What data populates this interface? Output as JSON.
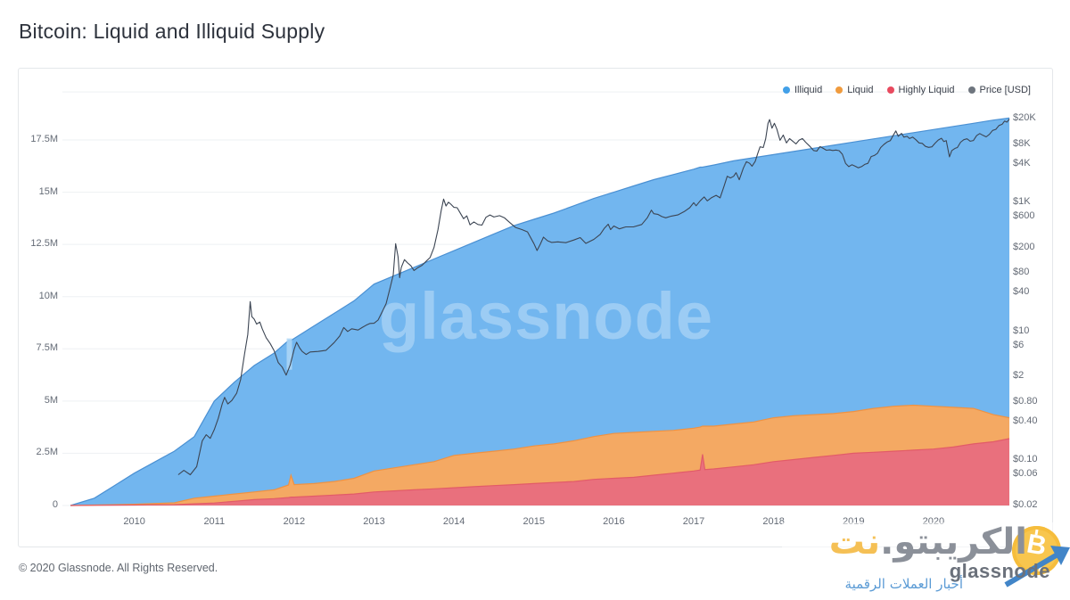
{
  "title": "Bitcoin: Liquid and Illiquid Supply",
  "watermark_text": "glassnode",
  "footer": {
    "copyright": "© 2020 Glassnode. All Rights Reserved."
  },
  "brand": {
    "name_main": "الكريبتو.",
    "name_accent": "نت",
    "coin_symbol": "B",
    "glassnode": "glassnode",
    "tagline": "أخبار العملات الرقمية",
    "accent_color": "#f5c055",
    "coin_color": "#f8c64e",
    "arrow_color": "#4285c8",
    "tagline_color": "#5b9bd5"
  },
  "chart_data": {
    "type": "stacked_area+line",
    "title": "Bitcoin: Liquid and Illiquid Supply",
    "legend_position": "top-right",
    "grid": "horizontal",
    "x_range": [
      2009.1,
      2020.95
    ],
    "left_axis": {
      "unit": "BTC supply (millions)",
      "lim": [
        0,
        19.8
      ],
      "labels": [
        "0",
        "2.5M",
        "5M",
        "7.5M",
        "10M",
        "12.5M",
        "15M",
        "17.5M"
      ],
      "values": [
        0,
        2.5,
        5,
        7.5,
        10,
        12.5,
        15,
        17.5
      ]
    },
    "right_axis": {
      "unit": "Price [USD]",
      "scale": "log",
      "lim": [
        0.02,
        20000
      ],
      "labels": [
        "$20K",
        "$8K",
        "$4K",
        "$1K",
        "$600",
        "$200",
        "$80",
        "$40",
        "$10",
        "$6",
        "$2",
        "$0.80",
        "$0.40",
        "$0.10",
        "$0.06",
        "$0.02"
      ],
      "values": [
        20000,
        8000,
        4000,
        1000,
        600,
        200,
        80,
        40,
        10,
        6,
        2,
        0.8,
        0.4,
        0.1,
        0.06,
        0.02
      ]
    },
    "x_axis": {
      "years": [
        2010,
        2011,
        2012,
        2013,
        2014,
        2015,
        2016,
        2017,
        2018,
        2019,
        2020
      ]
    },
    "series": [
      {
        "name": "Illiquid",
        "type": "area",
        "fill": "#72b6ef",
        "stroke": "#4a90d3",
        "dot": "#42a0e8"
      },
      {
        "name": "Liquid",
        "type": "area",
        "fill": "#f4a963",
        "stroke": "#ef9242",
        "dot": "#f09b3e"
      },
      {
        "name": "Highly Liquid",
        "type": "area",
        "fill": "#e9707d",
        "stroke": "#e25b68",
        "dot": "#e84a5f"
      },
      {
        "name": "Price [USD]",
        "type": "line",
        "stroke": "#3c4553",
        "dot": "#6e757e",
        "axis": "right"
      }
    ],
    "supply": {
      "unit": "M BTC",
      "x": [
        2009.2,
        2009.5,
        2010.0,
        2010.5,
        2010.75,
        2011.0,
        2011.25,
        2011.5,
        2011.75,
        2011.93,
        2011.96,
        2012.0,
        2012.25,
        2012.5,
        2012.75,
        2013.0,
        2013.25,
        2013.5,
        2013.75,
        2014.0,
        2014.25,
        2014.5,
        2014.75,
        2015.0,
        2015.25,
        2015.5,
        2015.75,
        2016.0,
        2016.25,
        2016.5,
        2016.75,
        2017.0,
        2017.08,
        2017.11,
        2017.14,
        2017.25,
        2017.5,
        2017.75,
        2018.0,
        2018.25,
        2018.5,
        2018.75,
        2019.0,
        2019.25,
        2019.5,
        2019.75,
        2020.0,
        2020.25,
        2020.5,
        2020.75,
        2020.95
      ],
      "highly_liquid": [
        0,
        0.01,
        0.02,
        0.04,
        0.08,
        0.12,
        0.2,
        0.28,
        0.33,
        0.38,
        0.4,
        0.4,
        0.45,
        0.5,
        0.55,
        0.65,
        0.7,
        0.75,
        0.8,
        0.85,
        0.9,
        0.95,
        1.0,
        1.05,
        1.1,
        1.15,
        1.25,
        1.3,
        1.35,
        1.45,
        1.55,
        1.65,
        1.7,
        2.45,
        1.72,
        1.75,
        1.85,
        1.95,
        2.1,
        2.2,
        2.3,
        2.4,
        2.5,
        2.55,
        2.6,
        2.65,
        2.7,
        2.8,
        2.95,
        3.05,
        3.2
      ],
      "liquid": [
        0,
        0.01,
        0.04,
        0.09,
        0.27,
        0.33,
        0.35,
        0.37,
        0.42,
        0.6,
        1.05,
        0.6,
        0.6,
        0.65,
        0.75,
        1.0,
        1.1,
        1.2,
        1.3,
        1.55,
        1.6,
        1.65,
        1.7,
        1.8,
        1.85,
        1.95,
        2.05,
        2.15,
        2.15,
        2.1,
        2.05,
        2.05,
        2.05,
        1.35,
        2.08,
        2.05,
        2.05,
        2.05,
        2.1,
        2.1,
        2.05,
        2.0,
        2.0,
        2.1,
        2.15,
        2.15,
        2.05,
        1.9,
        1.7,
        1.3,
        1.0
      ],
      "illiquid": [
        0,
        0.33,
        1.49,
        2.47,
        2.95,
        4.55,
        5.35,
        6.05,
        6.55,
        6.92,
        6.45,
        7.0,
        7.55,
        8.05,
        8.5,
        8.95,
        9.2,
        9.45,
        9.7,
        9.8,
        10.1,
        10.4,
        10.7,
        10.85,
        11.05,
        11.25,
        11.4,
        11.55,
        11.8,
        12.05,
        12.25,
        12.4,
        12.45,
        12.4,
        12.42,
        12.5,
        12.6,
        12.65,
        12.6,
        12.65,
        12.75,
        12.85,
        12.9,
        12.9,
        12.95,
        13.05,
        13.25,
        13.45,
        13.65,
        14.1,
        14.35
      ]
    },
    "price_usd": [
      [
        2010.55,
        0.06
      ],
      [
        2010.62,
        0.07
      ],
      [
        2010.7,
        0.06
      ],
      [
        2010.78,
        0.08
      ],
      [
        2010.85,
        0.2
      ],
      [
        2010.9,
        0.25
      ],
      [
        2010.95,
        0.22
      ],
      [
        2011.0,
        0.3
      ],
      [
        2011.05,
        0.45
      ],
      [
        2011.1,
        0.75
      ],
      [
        2011.13,
        0.95
      ],
      [
        2011.17,
        0.75
      ],
      [
        2011.22,
        0.85
      ],
      [
        2011.28,
        1.1
      ],
      [
        2011.33,
        1.8
      ],
      [
        2011.38,
        4.5
      ],
      [
        2011.42,
        9
      ],
      [
        2011.45,
        29
      ],
      [
        2011.47,
        17
      ],
      [
        2011.5,
        15.5
      ],
      [
        2011.53,
        13
      ],
      [
        2011.57,
        14
      ],
      [
        2011.6,
        11
      ],
      [
        2011.65,
        8
      ],
      [
        2011.7,
        6.5
      ],
      [
        2011.75,
        5
      ],
      [
        2011.8,
        3.3
      ],
      [
        2011.85,
        2.8
      ],
      [
        2011.9,
        2.1
      ],
      [
        2011.95,
        3
      ],
      [
        2012.0,
        5.3
      ],
      [
        2012.03,
        6.8
      ],
      [
        2012.07,
        5.5
      ],
      [
        2012.1,
        4.9
      ],
      [
        2012.15,
        4.4
      ],
      [
        2012.2,
        4.8
      ],
      [
        2012.3,
        4.9
      ],
      [
        2012.4,
        5.1
      ],
      [
        2012.5,
        6.7
      ],
      [
        2012.57,
        8.5
      ],
      [
        2012.62,
        11.5
      ],
      [
        2012.67,
        10
      ],
      [
        2012.72,
        11
      ],
      [
        2012.8,
        10.5
      ],
      [
        2012.85,
        11.5
      ],
      [
        2012.9,
        12.5
      ],
      [
        2012.95,
        13.3
      ],
      [
        2013.0,
        13.4
      ],
      [
        2013.05,
        15
      ],
      [
        2013.1,
        20
      ],
      [
        2013.15,
        27
      ],
      [
        2013.2,
        47
      ],
      [
        2013.24,
        75
      ],
      [
        2013.27,
        230
      ],
      [
        2013.3,
        145
      ],
      [
        2013.32,
        68
      ],
      [
        2013.34,
        98
      ],
      [
        2013.38,
        130
      ],
      [
        2013.42,
        115
      ],
      [
        2013.46,
        105
      ],
      [
        2013.5,
        88
      ],
      [
        2013.55,
        98
      ],
      [
        2013.6,
        106
      ],
      [
        2013.65,
        122
      ],
      [
        2013.7,
        140
      ],
      [
        2013.75,
        200
      ],
      [
        2013.8,
        380
      ],
      [
        2013.84,
        750
      ],
      [
        2013.87,
        1130
      ],
      [
        2013.9,
        880
      ],
      [
        2013.93,
        1010
      ],
      [
        2013.96,
        940
      ],
      [
        2014.0,
        840
      ],
      [
        2014.04,
        830
      ],
      [
        2014.08,
        680
      ],
      [
        2014.12,
        560
      ],
      [
        2014.16,
        620
      ],
      [
        2014.2,
        450
      ],
      [
        2014.25,
        500
      ],
      [
        2014.3,
        455
      ],
      [
        2014.35,
        445
      ],
      [
        2014.4,
        590
      ],
      [
        2014.45,
        640
      ],
      [
        2014.5,
        595
      ],
      [
        2014.57,
        625
      ],
      [
        2014.63,
        580
      ],
      [
        2014.7,
        485
      ],
      [
        2014.77,
        410
      ],
      [
        2014.85,
        380
      ],
      [
        2014.92,
        350
      ],
      [
        2015.0,
        230
      ],
      [
        2015.04,
        180
      ],
      [
        2015.08,
        225
      ],
      [
        2015.12,
        290
      ],
      [
        2015.17,
        255
      ],
      [
        2015.22,
        240
      ],
      [
        2015.3,
        245
      ],
      [
        2015.4,
        238
      ],
      [
        2015.5,
        262
      ],
      [
        2015.58,
        285
      ],
      [
        2015.65,
        232
      ],
      [
        2015.75,
        268
      ],
      [
        2015.83,
        320
      ],
      [
        2015.88,
        395
      ],
      [
        2015.93,
        460
      ],
      [
        2015.96,
        380
      ],
      [
        2016.0,
        432
      ],
      [
        2016.07,
        390
      ],
      [
        2016.15,
        418
      ],
      [
        2016.25,
        420
      ],
      [
        2016.35,
        455
      ],
      [
        2016.42,
        580
      ],
      [
        2016.47,
        760
      ],
      [
        2016.5,
        670
      ],
      [
        2016.55,
        655
      ],
      [
        2016.6,
        605
      ],
      [
        2016.65,
        578
      ],
      [
        2016.72,
        615
      ],
      [
        2016.8,
        640
      ],
      [
        2016.88,
        720
      ],
      [
        2016.95,
        830
      ],
      [
        2017.0,
        995
      ],
      [
        2017.03,
        890
      ],
      [
        2017.08,
        1060
      ],
      [
        2017.13,
        1220
      ],
      [
        2017.17,
        1060
      ],
      [
        2017.22,
        1180
      ],
      [
        2017.28,
        1290
      ],
      [
        2017.33,
        1180
      ],
      [
        2017.38,
        1800
      ],
      [
        2017.42,
        2550
      ],
      [
        2017.46,
        2400
      ],
      [
        2017.5,
        2550
      ],
      [
        2017.53,
        2900
      ],
      [
        2017.57,
        2250
      ],
      [
        2017.62,
        3400
      ],
      [
        2017.66,
        4300
      ],
      [
        2017.7,
        4050
      ],
      [
        2017.73,
        3650
      ],
      [
        2017.77,
        4350
      ],
      [
        2017.8,
        5700
      ],
      [
        2017.83,
        7300
      ],
      [
        2017.87,
        7100
      ],
      [
        2017.9,
        9700
      ],
      [
        2017.93,
        16800
      ],
      [
        2017.95,
        19300
      ],
      [
        2017.98,
        14200
      ],
      [
        2018.01,
        16900
      ],
      [
        2018.04,
        13800
      ],
      [
        2018.08,
        9200
      ],
      [
        2018.12,
        11100
      ],
      [
        2018.16,
        8400
      ],
      [
        2018.2,
        9800
      ],
      [
        2018.24,
        8900
      ],
      [
        2018.28,
        8100
      ],
      [
        2018.32,
        9300
      ],
      [
        2018.36,
        9800
      ],
      [
        2018.4,
        8600
      ],
      [
        2018.45,
        7500
      ],
      [
        2018.5,
        6400
      ],
      [
        2018.54,
        6250
      ],
      [
        2018.58,
        7350
      ],
      [
        2018.62,
        6900
      ],
      [
        2018.66,
        6450
      ],
      [
        2018.7,
        6550
      ],
      [
        2018.74,
        6400
      ],
      [
        2018.78,
        6500
      ],
      [
        2018.82,
        6350
      ],
      [
        2018.86,
        5600
      ],
      [
        2018.9,
        4050
      ],
      [
        2018.94,
        3600
      ],
      [
        2018.98,
        3850
      ],
      [
        2019.02,
        3650
      ],
      [
        2019.06,
        3450
      ],
      [
        2019.1,
        3600
      ],
      [
        2019.14,
        3900
      ],
      [
        2019.18,
        4050
      ],
      [
        2019.22,
        5150
      ],
      [
        2019.26,
        5350
      ],
      [
        2019.3,
        5800
      ],
      [
        2019.34,
        7100
      ],
      [
        2019.38,
        7950
      ],
      [
        2019.42,
        8650
      ],
      [
        2019.46,
        9100
      ],
      [
        2019.5,
        11200
      ],
      [
        2019.53,
        12900
      ],
      [
        2019.56,
        10600
      ],
      [
        2019.6,
        11800
      ],
      [
        2019.63,
        10300
      ],
      [
        2019.67,
        10600
      ],
      [
        2019.7,
        9800
      ],
      [
        2019.74,
        10300
      ],
      [
        2019.78,
        9400
      ],
      [
        2019.82,
        8400
      ],
      [
        2019.86,
        8250
      ],
      [
        2019.9,
        7400
      ],
      [
        2019.94,
        7150
      ],
      [
        2019.98,
        7300
      ],
      [
        2020.02,
        8300
      ],
      [
        2020.06,
        9300
      ],
      [
        2020.1,
        9900
      ],
      [
        2020.13,
        8800
      ],
      [
        2020.16,
        9100
      ],
      [
        2020.2,
        5100
      ],
      [
        2020.23,
        6400
      ],
      [
        2020.27,
        6900
      ],
      [
        2020.3,
        7100
      ],
      [
        2020.34,
        8600
      ],
      [
        2020.38,
        9400
      ],
      [
        2020.42,
        9700
      ],
      [
        2020.46,
        8900
      ],
      [
        2020.5,
        9150
      ],
      [
        2020.54,
        10900
      ],
      [
        2020.58,
        11700
      ],
      [
        2020.62,
        11000
      ],
      [
        2020.66,
        10400
      ],
      [
        2020.7,
        11400
      ],
      [
        2020.74,
        13100
      ],
      [
        2020.78,
        13600
      ],
      [
        2020.82,
        15600
      ],
      [
        2020.86,
        16300
      ],
      [
        2020.89,
        18300
      ],
      [
        2020.92,
        17600
      ],
      [
        2020.95,
        19700
      ]
    ],
    "annotations": [
      {
        "type": "highlight-bar",
        "x": 2011.94,
        "value_top": 8.0,
        "value_bottom": 6.5,
        "color": "#aed7f6",
        "opacity": 0.85
      }
    ]
  }
}
